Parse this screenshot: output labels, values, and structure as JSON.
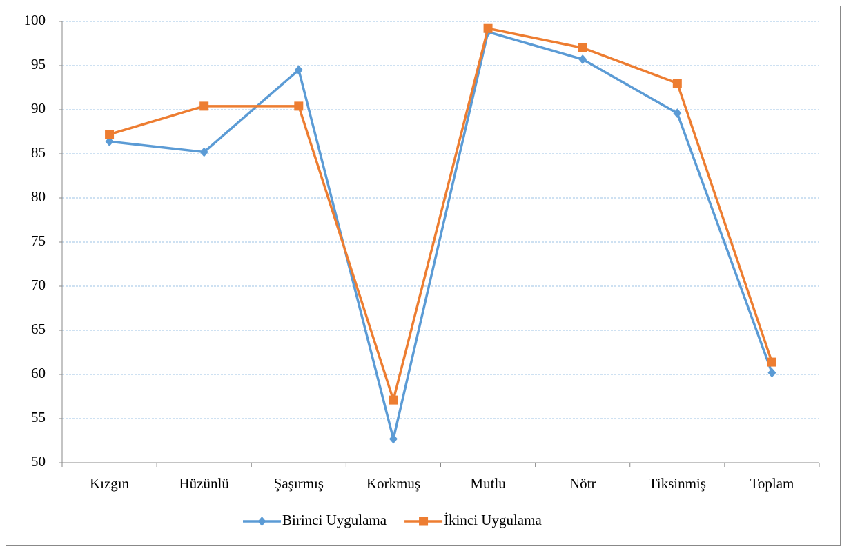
{
  "chart_data": {
    "type": "line",
    "categories": [
      "Kızgın",
      "Hüzünlü",
      "Şaşırmış",
      "Korkmuş",
      "Mutlu",
      "Nötr",
      "Tiksinmiş",
      "Toplam"
    ],
    "series": [
      {
        "name": "Birinci Uygulama",
        "color": "#5b9bd5",
        "marker": "diamond",
        "values": [
          86.4,
          85.2,
          94.5,
          52.7,
          98.8,
          95.7,
          89.6,
          60.2
        ]
      },
      {
        "name": "İkinci Uygulama",
        "color": "#ed7d31",
        "marker": "square",
        "values": [
          87.2,
          90.4,
          90.4,
          57.1,
          99.2,
          97.0,
          93.0,
          61.4
        ]
      }
    ],
    "ylim": [
      50,
      100
    ],
    "yticks": [
      50,
      55,
      60,
      65,
      70,
      75,
      80,
      85,
      90,
      95,
      100
    ],
    "grid": true,
    "legend": "bottom"
  }
}
